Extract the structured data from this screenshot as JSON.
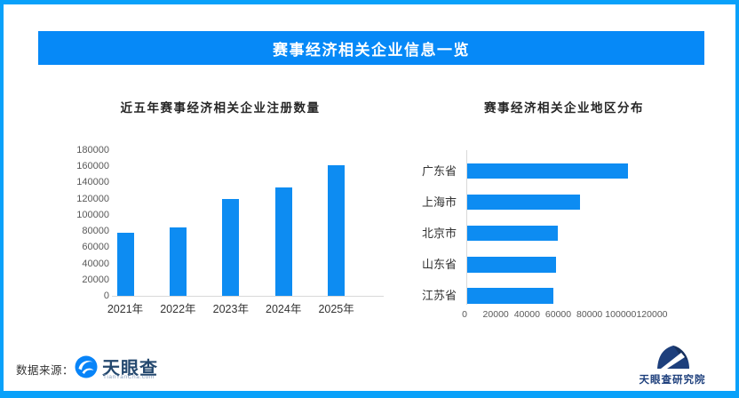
{
  "header": {
    "title": "赛事经济相关企业信息一览"
  },
  "chart_data": [
    {
      "type": "bar",
      "title": "近五年赛事经济相关企业注册数量",
      "categories": [
        "2021年",
        "2022年",
        "2023年",
        "2024年",
        "2025年"
      ],
      "values": [
        78000,
        85000,
        120000,
        134000,
        161000
      ],
      "xlabel": "",
      "ylabel": "",
      "ylim": [
        0,
        180000
      ],
      "ytick_step": 20000,
      "grid": false,
      "legend": "none"
    },
    {
      "type": "bar-horizontal",
      "title": "赛事经济相关企业地区分布",
      "categories": [
        "广东省",
        "上海市",
        "北京市",
        "山东省",
        "江苏省"
      ],
      "values": [
        103000,
        72000,
        58000,
        57000,
        55000
      ],
      "xlabel": "",
      "ylabel": "",
      "xlim": [
        0,
        120000
      ],
      "xtick_step": 20000,
      "grid": false,
      "legend": "none"
    }
  ],
  "footer": {
    "source_label": "数据来源：",
    "tyc_name": "天眼查",
    "tyc_domain": "TianYanCha.com",
    "institute_name": "天眼查研究院"
  },
  "colors": {
    "frame_blue": "#09a1fa",
    "banner_blue": "#0689f7",
    "bar_blue": "#0d8cf2",
    "axis_line": "#d9d9d9",
    "tyc_navy": "#24486e",
    "institute_navy": "#1d3f7c",
    "title_text": "#262626"
  }
}
